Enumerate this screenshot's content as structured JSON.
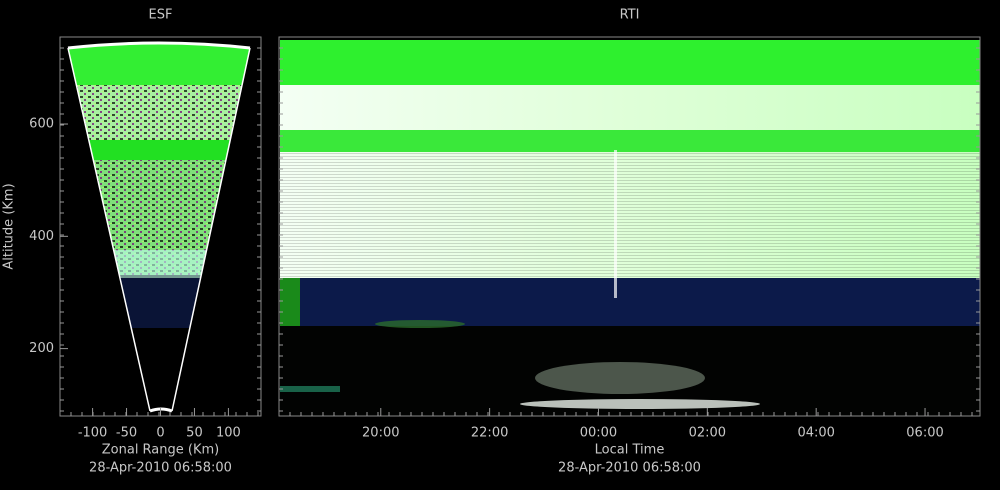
{
  "chart_data": [
    {
      "type": "fan",
      "title": "ESF",
      "xlabel": "Zonal Range (Km)",
      "ylabel": "Altitude (Km)",
      "caption": "28-Apr-2010 06:58:00",
      "xlim": [
        -148,
        148
      ],
      "xticks": [
        -100,
        -50,
        0,
        50,
        100
      ],
      "ylim": [
        80,
        755
      ],
      "yticks": [
        200,
        400,
        600
      ]
    },
    {
      "type": "rti",
      "title": "RTI",
      "xlabel": "Local Time",
      "caption": "28-Apr-2010 06:58:00",
      "xlim": [
        18.13,
        31.01
      ],
      "xticks": [
        {
          "value": 20,
          "label": "20:00"
        },
        {
          "value": 22,
          "label": "22:00"
        },
        {
          "value": 24,
          "label": "00:00"
        },
        {
          "value": 26,
          "label": "02:00"
        },
        {
          "value": 28,
          "label": "04:00"
        },
        {
          "value": 30,
          "label": "06:00"
        }
      ],
      "ylim": [
        80,
        755
      ]
    }
  ]
}
